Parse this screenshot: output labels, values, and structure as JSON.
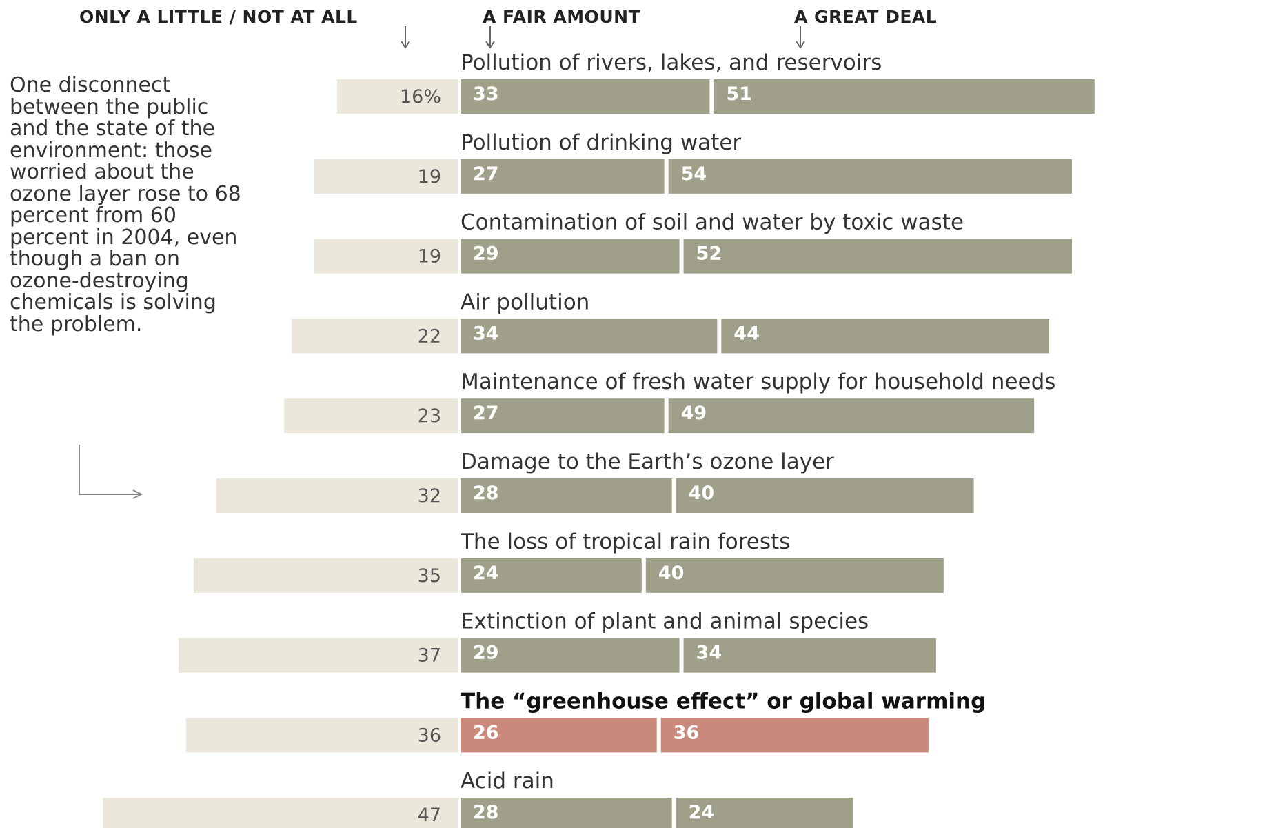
{
  "headers": {
    "little": "ONLY A LITTLE / NOT AT ALL",
    "fair": "A FAIR AMOUNT",
    "great": "A GREAT DEAL"
  },
  "note": "One disconnect between the public and the state of the environment: those worried about the ozone layer rose to 68 percent from 60 percent in 2004, even though a ban on ozone-destroying chemicals is solving the problem.",
  "colors": {
    "little": "#ebe7db",
    "fair_great": "#a09f8a",
    "highlight": "#c98a7b",
    "separator": "#ffffff"
  },
  "chart_data": {
    "type": "bar",
    "stacked": true,
    "series": [
      {
        "name": "ONLY A LITTLE / NOT AT ALL",
        "values": [
          16,
          19,
          19,
          22,
          23,
          32,
          35,
          37,
          36,
          47
        ]
      },
      {
        "name": "A FAIR AMOUNT",
        "values": [
          33,
          27,
          29,
          34,
          27,
          28,
          24,
          29,
          26,
          28
        ]
      },
      {
        "name": "A GREAT DEAL",
        "values": [
          51,
          54,
          52,
          44,
          49,
          40,
          40,
          34,
          36,
          24
        ]
      }
    ],
    "categories": [
      "Pollution of rivers, lakes, and reservoirs",
      "Pollution of drinking water",
      "Contamination of soil and water by toxic waste",
      "Air pollution",
      "Maintenance of fresh water supply for household needs",
      "Damage to the Earth’s ozone layer",
      "The loss of tropical rain forests",
      "Extinction of plant and animal species",
      "The “greenhouse effect” or global warming",
      "Acid rain"
    ],
    "left_labels": [
      "16%",
      "19",
      "19",
      "22",
      "23",
      "32",
      "35",
      "37",
      "36",
      "47"
    ],
    "highlight_category": "The “greenhouse effect” or global warming",
    "title": "",
    "xlabel": "",
    "ylabel": "",
    "xlim": [
      0,
      100
    ],
    "grid": false,
    "legend_position": "top"
  }
}
